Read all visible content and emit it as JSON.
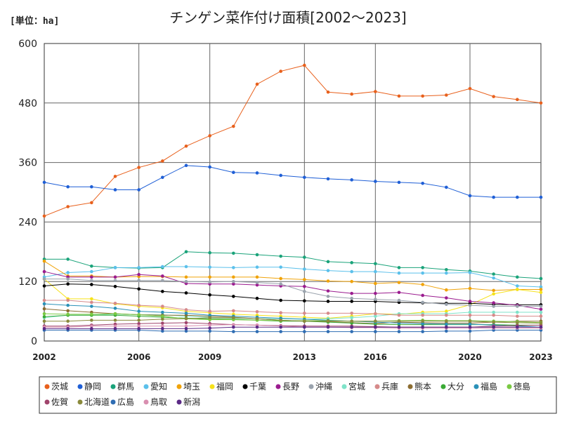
{
  "chart_data": {
    "type": "line",
    "title": "チンゲン菜作付け面積[2002～2023]",
    "unit_label": "[単位：ha]",
    "xlabel": "",
    "ylabel": "",
    "xlim": [
      2002,
      2023
    ],
    "ylim": [
      0,
      600
    ],
    "yticks": [
      0,
      120,
      240,
      360,
      480,
      600
    ],
    "xticks": [
      2002,
      2006,
      2009,
      2013,
      2016,
      2020,
      2023
    ],
    "grid": true,
    "legend_position": "bottom",
    "x": [
      2002,
      2003,
      2004,
      2005,
      2006,
      2007,
      2008,
      2009,
      2010,
      2011,
      2012,
      2013,
      2014,
      2015,
      2016,
      2017,
      2018,
      2019,
      2020,
      2021,
      2022,
      2023
    ],
    "series": [
      {
        "name": "茨城",
        "color": "#e8601c",
        "values": [
          252,
          271,
          279,
          332,
          350,
          363,
          393,
          414,
          433,
          518,
          544,
          556,
          502,
          498,
          503,
          494,
          494,
          496,
          509,
          493,
          487,
          480
        ]
      },
      {
        "name": "静岡",
        "color": "#1f5fd6",
        "values": [
          320,
          311,
          311,
          305,
          305,
          330,
          354,
          351,
          340,
          339,
          334,
          330,
          327,
          325,
          322,
          320,
          318,
          310,
          293,
          290,
          290,
          290
        ]
      },
      {
        "name": "群馬",
        "color": "#1aa37a",
        "values": [
          165,
          165,
          151,
          148,
          147,
          148,
          180,
          178,
          177,
          174,
          171,
          169,
          160,
          158,
          156,
          148,
          148,
          144,
          141,
          135,
          129,
          126
        ]
      },
      {
        "name": "愛知",
        "color": "#5bc0eb",
        "values": [
          129,
          138,
          140,
          148,
          148,
          150,
          150,
          149,
          148,
          149,
          149,
          145,
          142,
          140,
          140,
          137,
          137,
          137,
          138,
          127,
          111,
          109
        ]
      },
      {
        "name": "埼玉",
        "color": "#f0a30a",
        "values": [
          161,
          131,
          131,
          129,
          130,
          130,
          129,
          129,
          129,
          129,
          126,
          124,
          121,
          120,
          116,
          118,
          114,
          103,
          106,
          102,
          104,
          104
        ]
      },
      {
        "name": "福岡",
        "color": "#f6e21a",
        "values": [
          125,
          85,
          85,
          75,
          70,
          67,
          60,
          57,
          54,
          52,
          50,
          48,
          46,
          50,
          55,
          54,
          58,
          60,
          73,
          95,
          104,
          98
        ]
      },
      {
        "name": "千葉",
        "color": "#000000",
        "values": [
          111,
          115,
          114,
          110,
          105,
          100,
          97,
          93,
          90,
          86,
          82,
          81,
          80,
          80,
          80,
          78,
          77,
          76,
          76,
          74,
          73,
          73
        ]
      },
      {
        "name": "長野",
        "color": "#9b1c8f",
        "values": [
          140,
          129,
          129,
          129,
          134,
          131,
          116,
          115,
          115,
          113,
          111,
          110,
          101,
          96,
          96,
          98,
          92,
          87,
          80,
          77,
          72,
          64
        ]
      },
      {
        "name": "沖縄",
        "color": "#9aa3ad",
        "values": [
          125,
          125,
          122,
          122,
          122,
          122,
          120,
          119,
          120,
          118,
          115,
          100,
          90,
          86,
          84,
          82,
          78,
          74,
          72,
          70,
          70,
          70
        ]
      },
      {
        "name": "宮城",
        "color": "#7fe3c9",
        "values": [
          47,
          52,
          52,
          54,
          53,
          53,
          50,
          48,
          46,
          45,
          45,
          44,
          45,
          47,
          50,
          55,
          55,
          55,
          58,
          58,
          58,
          58
        ]
      },
      {
        "name": "兵庫",
        "color": "#d68a8a",
        "values": [
          82,
          82,
          78,
          76,
          72,
          70,
          63,
          60,
          61,
          59,
          57,
          56,
          56,
          56,
          55,
          52,
          52,
          52,
          52,
          52,
          50,
          50
        ]
      },
      {
        "name": "熊本",
        "color": "#8c6d31",
        "values": [
          65,
          61,
          58,
          55,
          53,
          52,
          52,
          50,
          48,
          45,
          42,
          40,
          39,
          37,
          35,
          38,
          37,
          36,
          36,
          38,
          40,
          40
        ]
      },
      {
        "name": "大分",
        "color": "#3aaa35",
        "values": [
          49,
          52,
          52,
          52,
          50,
          48,
          46,
          45,
          44,
          42,
          40,
          40,
          38,
          36,
          34,
          33,
          33,
          33,
          33,
          33,
          32,
          32
        ]
      },
      {
        "name": "福島",
        "color": "#2a91b8",
        "values": [
          75,
          72,
          70,
          66,
          60,
          58,
          56,
          52,
          50,
          48,
          46,
          44,
          42,
          40,
          38,
          36,
          35,
          34,
          34,
          32,
          30,
          28
        ]
      },
      {
        "name": "徳島",
        "color": "#7ac943",
        "values": [
          55,
          54,
          54,
          55,
          53,
          50,
          45,
          43,
          43,
          42,
          41,
          41,
          41,
          40,
          40,
          41,
          42,
          41,
          41,
          40,
          39,
          37
        ]
      },
      {
        "name": "佐賀",
        "color": "#a0446c",
        "values": [
          30,
          30,
          32,
          34,
          35,
          36,
          37,
          35,
          33,
          32,
          31,
          30,
          30,
          30,
          29,
          28,
          28,
          28,
          28,
          30,
          31,
          32
        ]
      },
      {
        "name": "北海道",
        "color": "#8a8a3c",
        "values": [
          40,
          40,
          42,
          42,
          42,
          44,
          45,
          47,
          47,
          45,
          42,
          40,
          40,
          40,
          40,
          40,
          40,
          40,
          40,
          38,
          37,
          36
        ]
      },
      {
        "name": "広島",
        "color": "#2f6db3",
        "values": [
          22,
          22,
          22,
          22,
          22,
          20,
          20,
          20,
          19,
          19,
          19,
          19,
          19,
          19,
          19,
          19,
          19,
          20,
          20,
          22,
          22,
          22
        ]
      },
      {
        "name": "鳥取",
        "color": "#d98fb0",
        "values": [
          28,
          28,
          30,
          30,
          30,
          30,
          30,
          32,
          33,
          32,
          30,
          28,
          28,
          27,
          27,
          26,
          26,
          26,
          26,
          26,
          26,
          26
        ]
      },
      {
        "name": "新潟",
        "color": "#5b2a86",
        "values": [
          25,
          25,
          25,
          25,
          25,
          25,
          25,
          26,
          28,
          28,
          28,
          28,
          28,
          28,
          28,
          28,
          28,
          28,
          28,
          28,
          28,
          28
        ]
      }
    ]
  }
}
